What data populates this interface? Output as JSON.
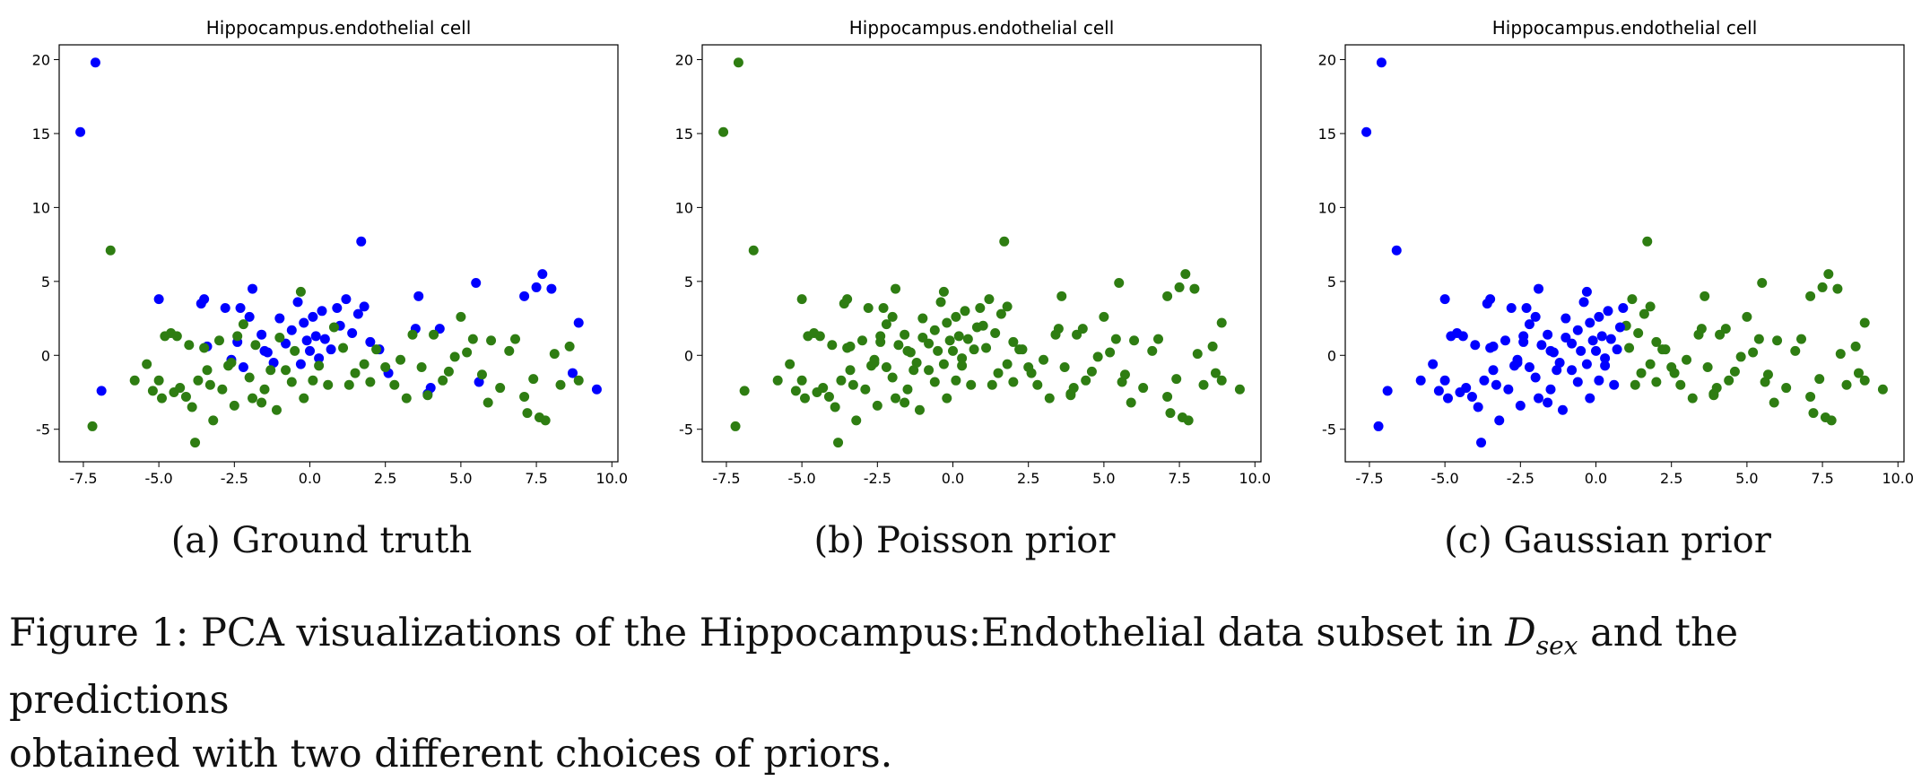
{
  "chart_data": [
    {
      "panel": "a",
      "type": "scatter",
      "title": "Hippocampus.endothelial cell",
      "subcaption": "(a) Ground truth",
      "xlim": [
        -8.3,
        10.2
      ],
      "ylim": [
        -7.2,
        21
      ],
      "xticks": [
        "-7.5",
        "-5.0",
        "-2.5",
        "0.0",
        "2.5",
        "5.0",
        "7.5",
        "10.0"
      ],
      "yticks": [
        "-5",
        "0",
        "5",
        "10",
        "15",
        "20"
      ],
      "grid": false,
      "colors": {
        "blue": "#0000ff",
        "green": "#2e7d12"
      },
      "series": [
        {
          "color": "#0000ff",
          "points": [
            [
              -7.6,
              15.1
            ],
            [
              -7.1,
              19.8
            ],
            [
              -6.9,
              -2.4
            ],
            [
              -5.0,
              3.8
            ],
            [
              -3.6,
              3.5
            ],
            [
              -3.5,
              3.8
            ],
            [
              -3.4,
              0.6
            ],
            [
              -2.8,
              3.2
            ],
            [
              -2.6,
              -0.3
            ],
            [
              -2.4,
              0.9
            ],
            [
              -2.2,
              -0.8
            ],
            [
              -2.0,
              2.6
            ],
            [
              -1.9,
              4.5
            ],
            [
              -1.6,
              1.4
            ],
            [
              -1.4,
              0.2
            ],
            [
              -1.2,
              -0.5
            ],
            [
              -1.0,
              2.5
            ],
            [
              -0.8,
              0.8
            ],
            [
              -0.6,
              1.7
            ],
            [
              -0.4,
              3.6
            ],
            [
              -0.3,
              -0.6
            ],
            [
              -0.2,
              2.2
            ],
            [
              -0.1,
              1.0
            ],
            [
              0.0,
              0.3
            ],
            [
              0.1,
              2.6
            ],
            [
              0.2,
              1.3
            ],
            [
              0.3,
              -0.2
            ],
            [
              0.4,
              3.0
            ],
            [
              0.5,
              1.1
            ],
            [
              0.7,
              0.4
            ],
            [
              0.9,
              3.2
            ],
            [
              1.0,
              2.0
            ],
            [
              1.2,
              3.8
            ],
            [
              1.4,
              1.5
            ],
            [
              1.6,
              2.8
            ],
            [
              1.7,
              7.7
            ],
            [
              1.8,
              3.3
            ],
            [
              2.0,
              0.9
            ],
            [
              2.3,
              0.4
            ],
            [
              2.6,
              -1.2
            ],
            [
              3.5,
              1.8
            ],
            [
              3.6,
              4.0
            ],
            [
              3.9,
              -2.6
            ],
            [
              4.0,
              -2.2
            ],
            [
              4.3,
              1.8
            ],
            [
              5.5,
              4.9
            ],
            [
              5.6,
              -1.8
            ],
            [
              7.1,
              4.0
            ],
            [
              7.5,
              4.6
            ],
            [
              7.7,
              5.5
            ],
            [
              8.0,
              4.5
            ],
            [
              8.7,
              -1.2
            ],
            [
              8.9,
              2.2
            ],
            [
              9.5,
              -2.3
            ],
            [
              -2.3,
              3.2
            ],
            [
              -1.5,
              0.3
            ]
          ]
        },
        {
          "color": "#2e7d12",
          "points": [
            [
              -6.6,
              7.1
            ],
            [
              -7.2,
              -4.8
            ],
            [
              -5.4,
              -0.6
            ],
            [
              -5.2,
              -2.4
            ],
            [
              -5.0,
              -1.7
            ],
            [
              -4.8,
              1.3
            ],
            [
              -4.6,
              1.5
            ],
            [
              -4.5,
              -2.5
            ],
            [
              -4.3,
              -2.2
            ],
            [
              -4.1,
              -2.8
            ],
            [
              -4.0,
              0.7
            ],
            [
              -3.9,
              -3.5
            ],
            [
              -3.8,
              -5.9
            ],
            [
              -3.7,
              -1.7
            ],
            [
              -3.5,
              0.5
            ],
            [
              -3.3,
              -2.0
            ],
            [
              -3.2,
              -4.4
            ],
            [
              -3.0,
              1.0
            ],
            [
              -2.9,
              -2.3
            ],
            [
              -2.7,
              -0.7
            ],
            [
              -2.5,
              -3.4
            ],
            [
              -2.4,
              1.3
            ],
            [
              -2.2,
              2.1
            ],
            [
              -2.0,
              -1.5
            ],
            [
              -1.9,
              -2.9
            ],
            [
              -1.8,
              0.7
            ],
            [
              -1.6,
              -3.2
            ],
            [
              -1.5,
              -2.3
            ],
            [
              -1.3,
              -1.0
            ],
            [
              -1.1,
              -3.7
            ],
            [
              -1.0,
              1.2
            ],
            [
              -0.8,
              -1.0
            ],
            [
              -0.6,
              -1.8
            ],
            [
              -0.5,
              0.3
            ],
            [
              -0.3,
              4.3
            ],
            [
              -0.2,
              -2.9
            ],
            [
              0.1,
              -1.7
            ],
            [
              0.3,
              -0.7
            ],
            [
              0.6,
              -2.0
            ],
            [
              0.8,
              1.9
            ],
            [
              1.1,
              0.5
            ],
            [
              1.3,
              -2.0
            ],
            [
              1.5,
              -1.2
            ],
            [
              1.8,
              -0.6
            ],
            [
              2.0,
              -1.8
            ],
            [
              2.2,
              0.4
            ],
            [
              2.5,
              -0.8
            ],
            [
              2.8,
              -2.0
            ],
            [
              3.0,
              -0.3
            ],
            [
              3.2,
              -2.9
            ],
            [
              3.4,
              1.4
            ],
            [
              3.7,
              -0.8
            ],
            [
              3.9,
              -2.7
            ],
            [
              4.1,
              1.4
            ],
            [
              4.4,
              -1.7
            ],
            [
              4.6,
              -1.1
            ],
            [
              4.8,
              -0.1
            ],
            [
              5.0,
              2.6
            ],
            [
              5.2,
              0.2
            ],
            [
              5.4,
              1.1
            ],
            [
              5.7,
              -1.3
            ],
            [
              5.9,
              -3.2
            ],
            [
              6.0,
              1.0
            ],
            [
              6.3,
              -2.2
            ],
            [
              6.6,
              0.3
            ],
            [
              6.8,
              1.1
            ],
            [
              7.1,
              -2.8
            ],
            [
              7.2,
              -3.9
            ],
            [
              7.4,
              -1.6
            ],
            [
              7.6,
              -4.2
            ],
            [
              7.8,
              -4.4
            ],
            [
              8.1,
              0.1
            ],
            [
              8.3,
              -2.0
            ],
            [
              8.6,
              0.6
            ],
            [
              8.9,
              -1.7
            ],
            [
              -5.8,
              -1.7
            ],
            [
              -4.9,
              -2.9
            ],
            [
              -4.4,
              1.3
            ],
            [
              -3.4,
              -1.0
            ],
            [
              -2.6,
              -0.5
            ]
          ]
        }
      ]
    },
    {
      "panel": "b",
      "type": "scatter",
      "title": "Hippocampus.endothelial cell",
      "subcaption": "(b) Poisson prior",
      "xlim": [
        -8.3,
        10.2
      ],
      "ylim": [
        -7.2,
        21
      ],
      "xticks": [
        "-7.5",
        "-5.0",
        "-2.5",
        "0.0",
        "2.5",
        "5.0",
        "7.5",
        "10.0"
      ],
      "yticks": [
        "-5",
        "0",
        "5",
        "10",
        "15",
        "20"
      ],
      "grid": false,
      "series": [
        {
          "color": "#2e7d12",
          "points": "all points of panel (a), all predicted green"
        }
      ]
    },
    {
      "panel": "c",
      "type": "scatter",
      "title": "Hippocampus.endothelial cell",
      "subcaption": "(c) Gaussian prior",
      "xlim": [
        -8.3,
        10.2
      ],
      "ylim": [
        -7.2,
        21
      ],
      "xticks": [
        "-7.5",
        "-5.0",
        "-2.5",
        "0.0",
        "2.5",
        "5.0",
        "7.5",
        "10.0"
      ],
      "yticks": [
        "-5",
        "0",
        "5",
        "10",
        "15",
        "20"
      ],
      "grid": false,
      "rule": "points with x < 1.0 blue, points with x >= 1.0 green"
    }
  ],
  "caption": {
    "prefix": "Figure 1:  PCA visualizations of the Hippocampus:Endothelial data subset in ",
    "math": "D",
    "math_sub": "sex",
    "suffix": " and the predictions",
    "line2": "obtained with two different choices of priors."
  }
}
